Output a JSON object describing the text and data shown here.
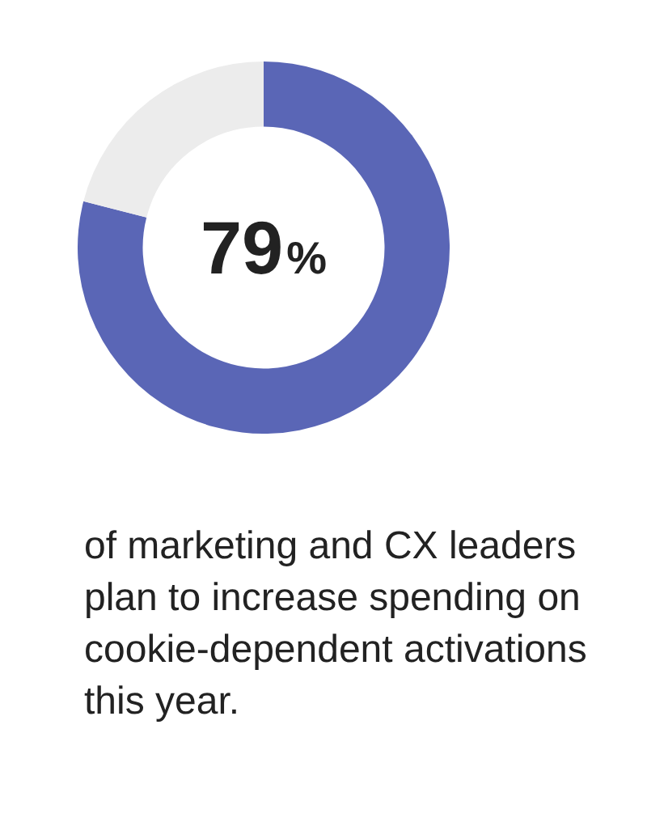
{
  "chart_data": {
    "type": "donut",
    "categories": [
      null,
      null
    ],
    "values": [
      79,
      21
    ],
    "colors": [
      "#5a66b6",
      "#ececec"
    ],
    "value_labels": [
      "79%",
      null
    ],
    "annotations": [
      "of marketing and CX leaders plan to increase spending on cookie-dependent activations this year."
    ]
  }
}
